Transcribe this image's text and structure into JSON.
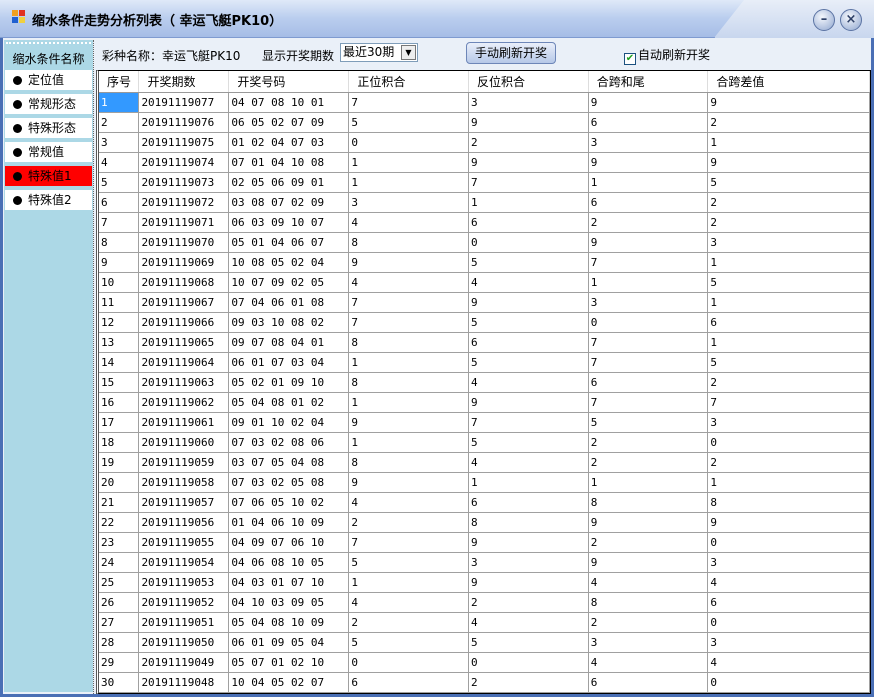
{
  "window": {
    "title": "缩水条件走势分析列表（  幸运飞艇PK10）",
    "minimize": "–",
    "close": "×"
  },
  "sidebar": {
    "header": "缩水条件名称",
    "items": [
      {
        "label": "定位值",
        "active": false
      },
      {
        "label": "常规形态",
        "active": false
      },
      {
        "label": "特殊形态",
        "active": false
      },
      {
        "label": "常规值",
        "active": false
      },
      {
        "label": "特殊值1",
        "active": true
      },
      {
        "label": "特殊值2",
        "active": false
      }
    ]
  },
  "toolbar": {
    "lottery_label": "彩种名称：幸运飞艇PK10",
    "periods_label": "显示开奖期数",
    "periods_value": "最近30期",
    "refresh_button": "手动刷新开奖",
    "auto_refresh_label": "自动刷新开奖",
    "auto_refresh_checked": true
  },
  "table": {
    "columns": [
      "序号",
      "开奖期数",
      "开奖号码",
      "正位积合",
      "反位积合",
      "合跨和尾",
      "合跨差值"
    ],
    "rows": [
      [
        "1",
        "20191119077",
        "04 07 08 10 01",
        "7",
        "3",
        "9",
        "9"
      ],
      [
        "2",
        "20191119076",
        "06 05 02 07 09",
        "5",
        "9",
        "6",
        "2"
      ],
      [
        "3",
        "20191119075",
        "01 02 04 07 03",
        "0",
        "2",
        "3",
        "1"
      ],
      [
        "4",
        "20191119074",
        "07 01 04 10 08",
        "1",
        "9",
        "9",
        "9"
      ],
      [
        "5",
        "20191119073",
        "02 05 06 09 01",
        "1",
        "7",
        "1",
        "5"
      ],
      [
        "6",
        "20191119072",
        "03 08 07 02 09",
        "3",
        "1",
        "6",
        "2"
      ],
      [
        "7",
        "20191119071",
        "06 03 09 10 07",
        "4",
        "6",
        "2",
        "2"
      ],
      [
        "8",
        "20191119070",
        "05 01 04 06 07",
        "8",
        "0",
        "9",
        "3"
      ],
      [
        "9",
        "20191119069",
        "10 08 05 02 04",
        "9",
        "5",
        "7",
        "1"
      ],
      [
        "10",
        "20191119068",
        "10 07 09 02 05",
        "4",
        "4",
        "1",
        "5"
      ],
      [
        "11",
        "20191119067",
        "07 04 06 01 08",
        "7",
        "9",
        "3",
        "1"
      ],
      [
        "12",
        "20191119066",
        "09 03 10 08 02",
        "7",
        "5",
        "0",
        "6"
      ],
      [
        "13",
        "20191119065",
        "09 07 08 04 01",
        "8",
        "6",
        "7",
        "1"
      ],
      [
        "14",
        "20191119064",
        "06 01 07 03 04",
        "1",
        "5",
        "7",
        "5"
      ],
      [
        "15",
        "20191119063",
        "05 02 01 09 10",
        "8",
        "4",
        "6",
        "2"
      ],
      [
        "16",
        "20191119062",
        "05 04 08 01 02",
        "1",
        "9",
        "7",
        "7"
      ],
      [
        "17",
        "20191119061",
        "09 01 10 02 04",
        "9",
        "7",
        "5",
        "3"
      ],
      [
        "18",
        "20191119060",
        "07 03 02 08 06",
        "1",
        "5",
        "2",
        "0"
      ],
      [
        "19",
        "20191119059",
        "03 07 05 04 08",
        "8",
        "4",
        "2",
        "2"
      ],
      [
        "20",
        "20191119058",
        "07 03 02 05 08",
        "9",
        "1",
        "1",
        "1"
      ],
      [
        "21",
        "20191119057",
        "07 06 05 10 02",
        "4",
        "6",
        "8",
        "8"
      ],
      [
        "22",
        "20191119056",
        "01 04 06 10 09",
        "2",
        "8",
        "9",
        "9"
      ],
      [
        "23",
        "20191119055",
        "04 09 07 06 10",
        "7",
        "9",
        "2",
        "0"
      ],
      [
        "24",
        "20191119054",
        "04 06 08 10 05",
        "5",
        "3",
        "9",
        "3"
      ],
      [
        "25",
        "20191119053",
        "04 03 01 07 10",
        "1",
        "9",
        "4",
        "4"
      ],
      [
        "26",
        "20191119052",
        "04 10 03 09 05",
        "4",
        "2",
        "8",
        "6"
      ],
      [
        "27",
        "20191119051",
        "05 04 08 10 09",
        "2",
        "4",
        "2",
        "0"
      ],
      [
        "28",
        "20191119050",
        "06 01 09 05 04",
        "5",
        "5",
        "3",
        "3"
      ],
      [
        "29",
        "20191119049",
        "05 07 01 02 10",
        "0",
        "0",
        "4",
        "4"
      ],
      [
        "30",
        "20191119048",
        "10 04 05 02 07",
        "6",
        "2",
        "6",
        "0"
      ]
    ]
  },
  "colors": {
    "active_item": "#ff0000",
    "selection": "#3399ff",
    "sidebar_bg": "#acd8e6"
  }
}
